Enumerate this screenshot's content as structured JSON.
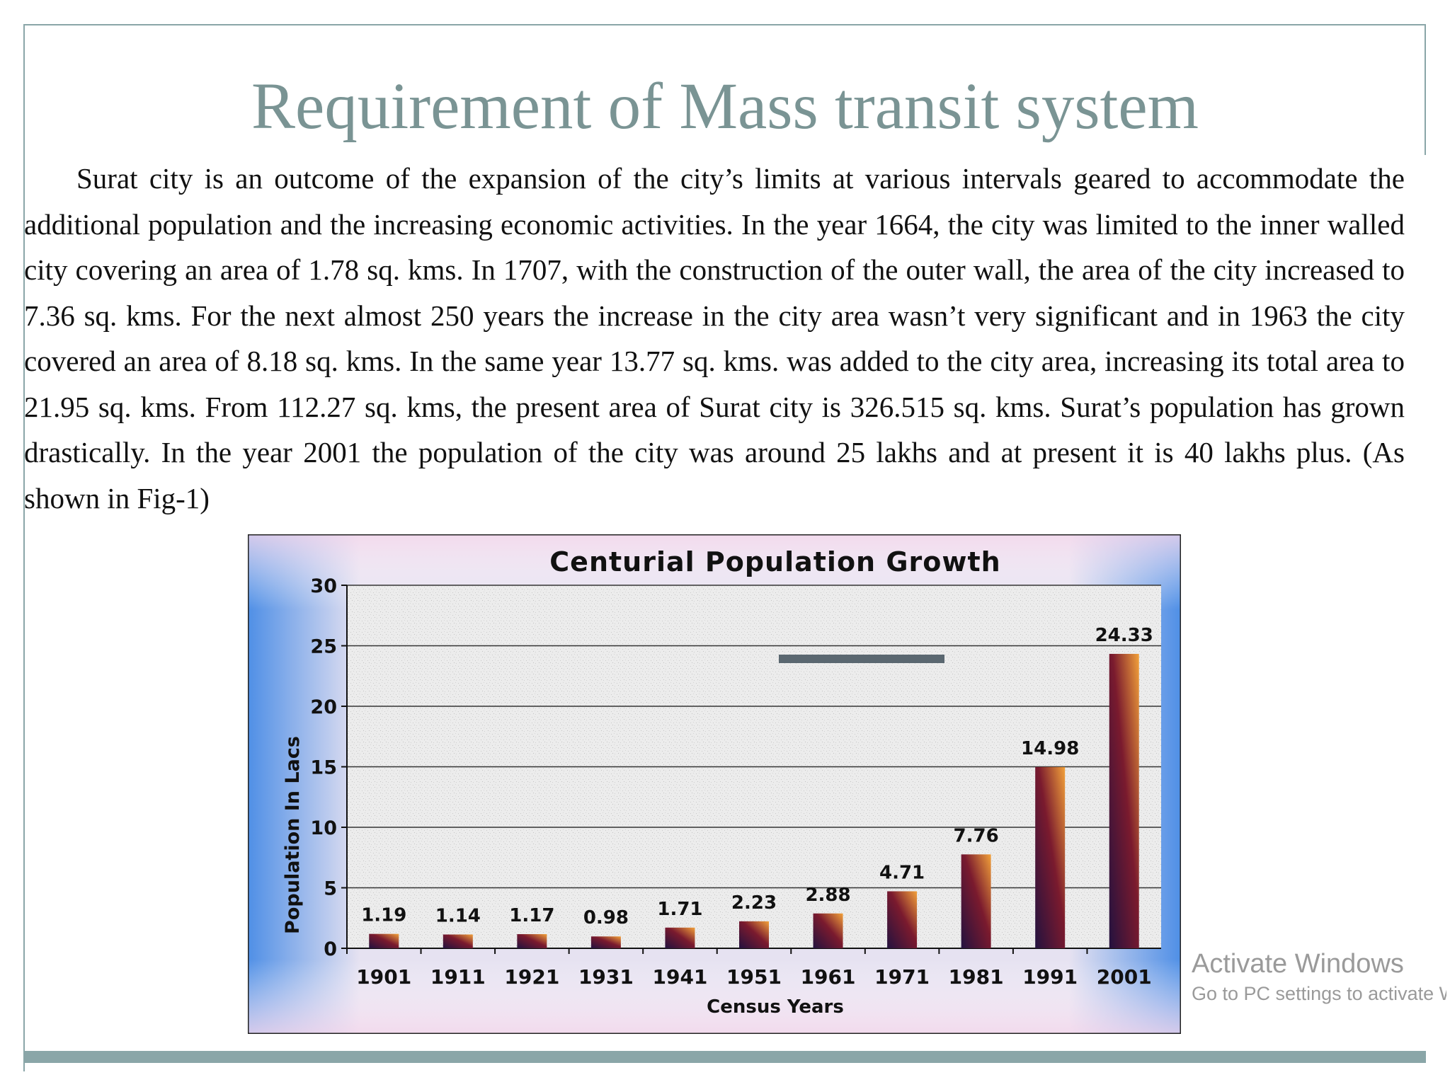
{
  "slide": {
    "title": "Requirement of Mass transit system",
    "paragraph": "Surat city is an outcome of the expansion of the city’s limits at various intervals geared to accommodate the additional population and the increasing economic activities. In the year 1664, the city was limited to the inner walled city covering an area of 1.78 sq. kms. In 1707, with the construction of the outer wall, the area of the city increased to 7.36 sq. kms. For the next almost 250 years the increase in the city area wasn’t very significant and in 1963 the city covered an area of 8.18 sq. kms. In the same year 13.77 sq. kms. was added to the city area, increasing its total area to 21.95 sq. kms. From 112.27 sq. kms, the present area of Surat city is 326.515 sq. kms. Surat’s population has grown drastically. In the year 2001 the population of the city was around 25 lakhs and at present it is 40 lakhs plus. (As shown in Fig-1)"
  },
  "watermark": {
    "line1": "Activate Windows",
    "line2": "Go to PC settings to activate Windows."
  },
  "chart_data": {
    "type": "bar",
    "title": "Centurial Population Growth",
    "xlabel": "Census Years",
    "ylabel": "Population In Lacs",
    "categories": [
      "1901",
      "1911",
      "1921",
      "1931",
      "1941",
      "1951",
      "1961",
      "1971",
      "1981",
      "1991",
      "2001"
    ],
    "values": [
      1.19,
      1.14,
      1.17,
      0.98,
      1.71,
      2.23,
      2.88,
      4.71,
      7.76,
      14.98,
      24.33
    ],
    "data_labels": [
      "1.19",
      "1.14",
      "1.17",
      "0.98",
      "1.71",
      "2.23",
      "2.88",
      "4.71",
      "7.76",
      "14.98",
      "24.33"
    ],
    "ylim": [
      0,
      30
    ],
    "yticks": [
      0,
      5,
      10,
      15,
      20,
      25,
      30
    ],
    "grid": true,
    "colors": {
      "bar_dark": "#23123f",
      "bar_mid": "#7a1a2e",
      "bar_light": "#f2a13a",
      "gridline": "#333333",
      "background": "#eeeeee",
      "legend_mark": "#5a6770"
    }
  }
}
